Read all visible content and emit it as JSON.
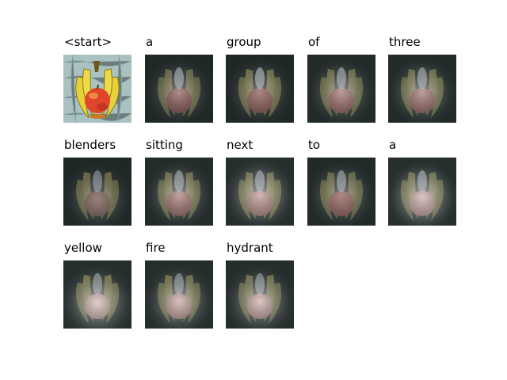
{
  "caption_words": [
    "<start>",
    "a",
    "group",
    "of",
    "three",
    "blenders",
    "sitting",
    "next",
    "to",
    "a",
    "yellow",
    "fire",
    "hydrant"
  ],
  "colors": {
    "original_bg": "#9fb8b8",
    "banana": "#e8d23a",
    "apple": "#e0452a",
    "attention_dark": "#1c2424",
    "attention_glow": "#e9e4e4"
  },
  "icons": {
    "original": "fruit-image-original",
    "attention": "attention-overlay-image"
  }
}
